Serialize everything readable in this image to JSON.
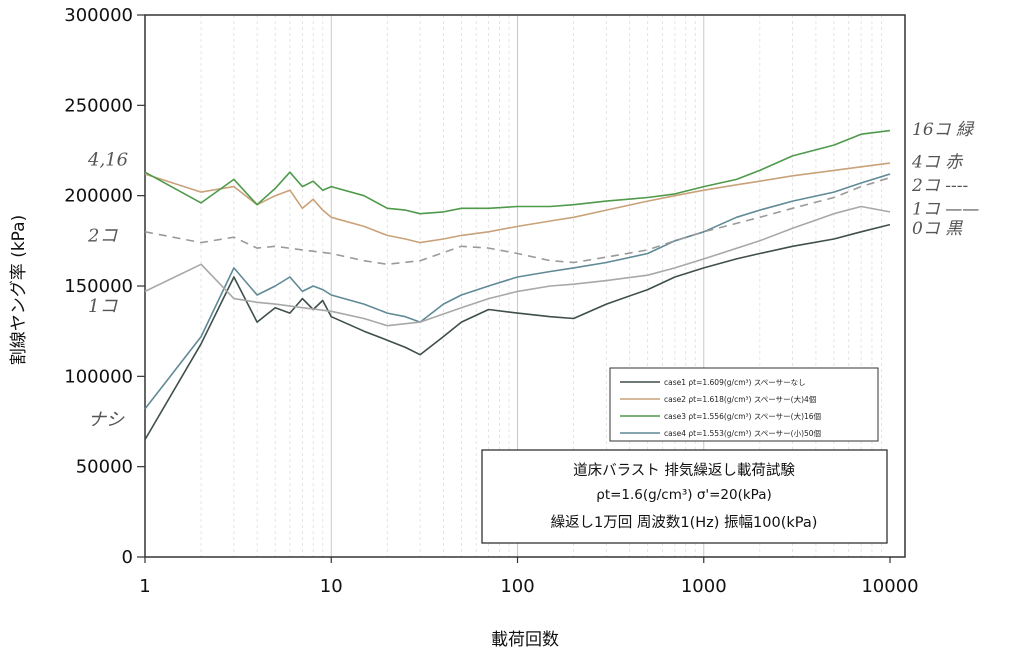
{
  "chart_data": {
    "type": "line",
    "title": "",
    "xlabel": "載荷回数",
    "ylabel": "割線ヤング率 (kPa)",
    "x_scale": "log",
    "xlim": [
      1,
      10000
    ],
    "ylim": [
      0,
      300000
    ],
    "x_ticks": [
      "1",
      "10",
      "100",
      "1000",
      "10000"
    ],
    "y_ticks": [
      "0",
      "50000",
      "100000",
      "150000",
      "200000",
      "250000",
      "300000"
    ],
    "grid": "vertical",
    "legend_position": "lower-right",
    "series": [
      {
        "name": "case1 ρt=1.609(g/cm³) スペーサーなし",
        "color": "#3f4f4a",
        "x": [
          1,
          2,
          3,
          4,
          5,
          6,
          7,
          8,
          9,
          10,
          15,
          20,
          25,
          30,
          40,
          50,
          70,
          100,
          150,
          200,
          300,
          500,
          700,
          1000,
          1500,
          2000,
          3000,
          5000,
          7000,
          10000
        ],
        "y": [
          65000,
          118000,
          155000,
          130000,
          138000,
          135000,
          143000,
          137000,
          142000,
          133000,
          125000,
          120000,
          116000,
          112000,
          122000,
          130000,
          137000,
          135000,
          133000,
          132000,
          140000,
          148000,
          155000,
          160000,
          165000,
          168000,
          172000,
          176000,
          180000,
          184000
        ]
      },
      {
        "name": "case2 ρt=1.618(g/cm³) スペーサー(大)4個",
        "color": "#c9a27a",
        "x": [
          1,
          2,
          3,
          4,
          5,
          6,
          7,
          8,
          9,
          10,
          15,
          20,
          25,
          30,
          40,
          50,
          70,
          100,
          150,
          200,
          300,
          500,
          700,
          1000,
          1500,
          2000,
          3000,
          5000,
          7000,
          10000
        ],
        "y": [
          212000,
          202000,
          205000,
          195000,
          200000,
          203000,
          193000,
          198000,
          192000,
          188000,
          183000,
          178000,
          176000,
          174000,
          176000,
          178000,
          180000,
          183000,
          186000,
          188000,
          192000,
          197000,
          200000,
          203000,
          206000,
          208000,
          211000,
          214000,
          216000,
          218000
        ]
      },
      {
        "name": "case3 ρt=1.556(g/cm³) スペーサー(大)16個",
        "color": "#4f9a4a",
        "x": [
          1,
          2,
          3,
          4,
          5,
          6,
          7,
          8,
          9,
          10,
          15,
          20,
          25,
          30,
          40,
          50,
          70,
          100,
          150,
          200,
          300,
          500,
          700,
          1000,
          1500,
          2000,
          3000,
          5000,
          7000,
          10000
        ],
        "y": [
          213000,
          196000,
          209000,
          195000,
          204000,
          213000,
          205000,
          208000,
          203000,
          205000,
          200000,
          193000,
          192000,
          190000,
          191000,
          193000,
          193000,
          194000,
          194000,
          195000,
          197000,
          199000,
          201000,
          205000,
          209000,
          214000,
          222000,
          228000,
          234000,
          236000
        ]
      },
      {
        "name": "case4 ρt=1.553(g/cm³) スペーサー(小)50個",
        "color": "#5f8a96",
        "x": [
          1,
          2,
          3,
          4,
          5,
          6,
          7,
          8,
          9,
          10,
          15,
          20,
          25,
          30,
          40,
          50,
          70,
          100,
          150,
          200,
          300,
          500,
          700,
          1000,
          1500,
          2000,
          3000,
          5000,
          7000,
          10000
        ],
        "y": [
          82000,
          122000,
          160000,
          145000,
          150000,
          155000,
          147000,
          150000,
          148000,
          145000,
          140000,
          135000,
          133000,
          130000,
          140000,
          145000,
          150000,
          155000,
          158000,
          160000,
          163000,
          168000,
          175000,
          180000,
          188000,
          192000,
          197000,
          202000,
          207000,
          212000
        ]
      },
      {
        "name": "",
        "color": "#9a9a9a",
        "dashed": true,
        "x": [
          1,
          2,
          3,
          4,
          5,
          7,
          10,
          15,
          20,
          30,
          50,
          70,
          100,
          150,
          200,
          300,
          500,
          700,
          1000,
          2000,
          3000,
          5000,
          7000,
          10000
        ],
        "y": [
          180000,
          174000,
          177000,
          171000,
          172000,
          170000,
          168000,
          164000,
          162000,
          164000,
          172000,
          171000,
          168000,
          164000,
          163000,
          166000,
          170000,
          175000,
          180000,
          188000,
          193000,
          199000,
          205000,
          210000
        ]
      },
      {
        "name": "",
        "color": "#a8a8a8",
        "x": [
          1,
          2,
          3,
          4,
          5,
          7,
          10,
          15,
          20,
          30,
          50,
          70,
          100,
          150,
          200,
          300,
          500,
          700,
          1000,
          2000,
          3000,
          5000,
          7000,
          10000
        ],
        "y": [
          147000,
          162000,
          143000,
          141000,
          140000,
          138000,
          136000,
          132000,
          128000,
          130000,
          138000,
          143000,
          147000,
          150000,
          151000,
          153000,
          156000,
          160000,
          165000,
          175000,
          182000,
          190000,
          194000,
          191000
        ]
      }
    ],
    "info_box": {
      "line1": "道床バラスト 排気繰返し載荷試験",
      "line2": "ρt=1.6(g/cm³)  σ'=20(kPa)",
      "line3": "繰返し1万回  周波数1(Hz)  振幅100(kPa)"
    },
    "annotations_left": [
      {
        "text": "4,16",
        "y": 220000
      },
      {
        "text": "2コ",
        "y": 178000
      },
      {
        "text": "1コ",
        "y": 139000
      },
      {
        "text": "ナシ",
        "y": 76000
      }
    ],
    "annotations_right": [
      {
        "text": "16コ 緑",
        "y": 237000
      },
      {
        "text": "4コ 赤",
        "y": 219000
      },
      {
        "text": "2コ ----",
        "y": 206000
      },
      {
        "text": "1コ ——",
        "y": 193000
      },
      {
        "text": "0コ 黒",
        "y": 182000
      }
    ]
  }
}
